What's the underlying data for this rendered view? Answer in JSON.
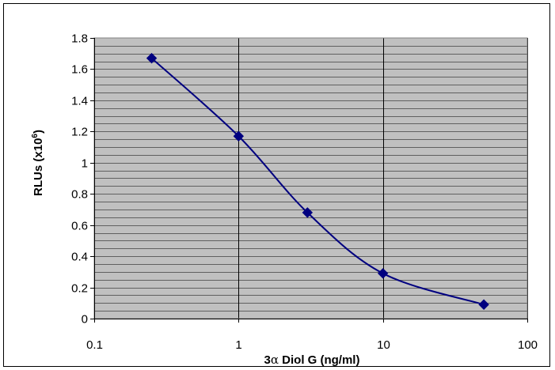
{
  "chart_data": {
    "type": "scatter",
    "title": "",
    "xlabel": "3α Diol G (ng/ml)",
    "xlabel_parts": {
      "prefix": "3",
      "greek": "α",
      "suffix": " Diol G (ng/ml)"
    },
    "ylabel": "RLUs (x10⁶)",
    "ylabel_parts": {
      "base": "RLUs (x10",
      "sup": "6",
      "close": ")"
    },
    "x_scale": "log",
    "xlim": [
      0.1,
      100
    ],
    "ylim": [
      0,
      1.8
    ],
    "x_ticks": [
      0.1,
      1,
      10,
      100
    ],
    "x_tick_labels": [
      "0.1",
      "1",
      "10",
      "100"
    ],
    "y_ticks": [
      0,
      0.2,
      0.4,
      0.6,
      0.8,
      1,
      1.2,
      1.4,
      1.6,
      1.8
    ],
    "y_tick_labels": [
      "0",
      "0.2",
      "0.4",
      "0.6",
      "0.8",
      "1",
      "1.2",
      "1.4",
      "1.6",
      "1.8"
    ],
    "grid": true,
    "legend": "none",
    "series": [
      {
        "x": [
          0.25,
          1,
          3,
          10,
          50
        ],
        "y": [
          1.67,
          1.17,
          0.68,
          0.29,
          0.09
        ],
        "marker": "diamond",
        "line": "smooth"
      }
    ],
    "colors": {
      "plot_bg": "#c0c0c0",
      "gridline": "#000000",
      "series": "#000080"
    }
  }
}
